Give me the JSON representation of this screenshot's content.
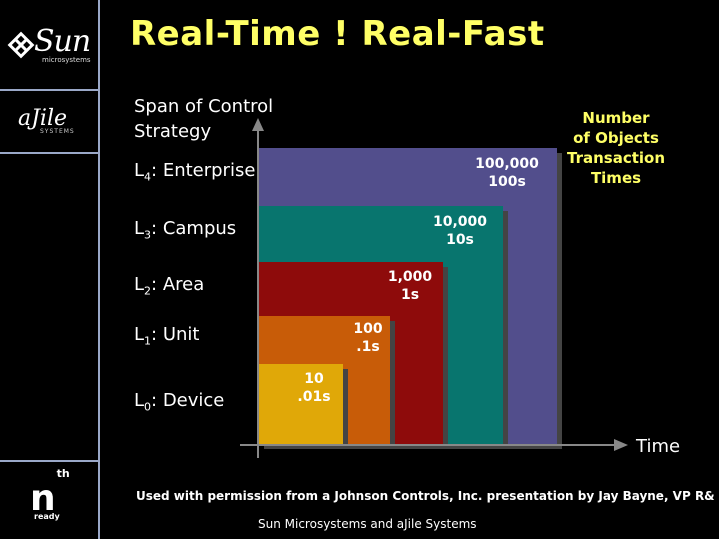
{
  "title": "Real-Time ! Real-Fast",
  "sidebar": {
    "sun_logo_text": "Sun",
    "sun_sub_text": "microsystems",
    "ajile_text": "aJile",
    "ajile_sub": "SYSTEMS",
    "nth_text": "n",
    "nth_sup": "th",
    "ready_text": "ready"
  },
  "axis": {
    "y_title_line1": "Span of Control",
    "y_title_line2": "Strategy",
    "x_title": "Time"
  },
  "legend": {
    "line1": "Number",
    "line2": "of Objects",
    "line3": "Transaction",
    "line4": "Times"
  },
  "levels": [
    {
      "prefix": "L",
      "sub": "4",
      "name": ": Enterprise",
      "objects": "100,000",
      "time": "100s",
      "color": "#524e8c"
    },
    {
      "prefix": "L",
      "sub": "3",
      "name": ": Campus",
      "objects": "10,000",
      "time": "10s",
      "color": "#08756e"
    },
    {
      "prefix": "L",
      "sub": "2",
      "name": ": Area",
      "objects": "1,000",
      "time": "1s",
      "color": "#8e0b0b"
    },
    {
      "prefix": "L",
      "sub": "1",
      "name": ": Unit",
      "objects": "100",
      "time": ".1s",
      "color": "#c85c08"
    },
    {
      "prefix": "L",
      "sub": "0",
      "name": ": Device",
      "objects": "10",
      "time": ".01s",
      "color": "#e0a808"
    }
  ],
  "footer": {
    "line1": "Used with permission from a Johnson Controls, Inc. presentation by Jay Bayne, VP R&",
    "line2": "Sun Microsystems and aJile Systems"
  }
}
